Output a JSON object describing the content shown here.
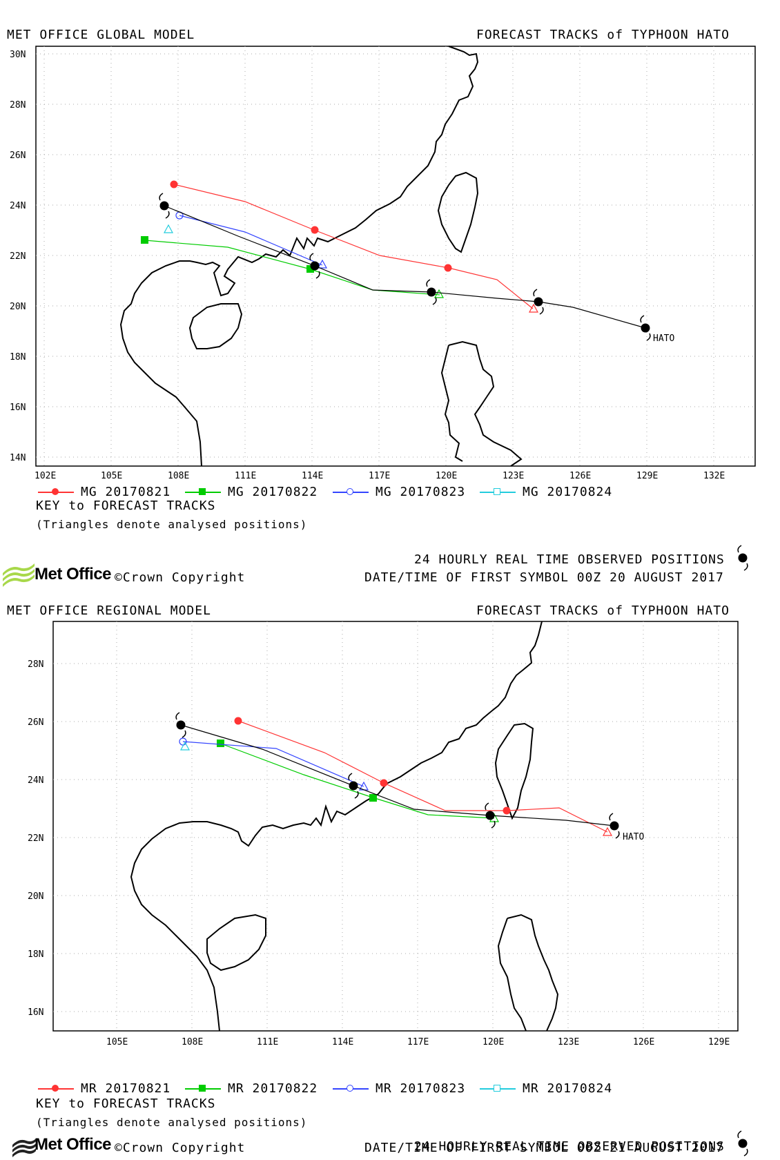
{
  "global": {
    "title_left": "MET OFFICE GLOBAL MODEL",
    "title_right": "FORECAST TRACKS of TYPHOON HATO",
    "lat_labels": [
      "30N",
      "28N",
      "26N",
      "24N",
      "22N",
      "20N",
      "18N",
      "16N",
      "14N"
    ],
    "lon_labels": [
      "102E",
      "105E",
      "108E",
      "111E",
      "114E",
      "117E",
      "120E",
      "123E",
      "126E",
      "129E",
      "132E"
    ],
    "storm_label": "HATO",
    "legend": [
      {
        "label": "MG 20170821",
        "color": "#ff3333",
        "marker": "filled-circle"
      },
      {
        "label": "MG 20170822",
        "color": "#00cc00",
        "marker": "filled-square"
      },
      {
        "label": "MG 20170823",
        "color": "#3344ff",
        "marker": "open-circle"
      },
      {
        "label": "MG 20170824",
        "color": "#22ccdd",
        "marker": "open-square"
      }
    ],
    "key_title": "KEY to FORECAST TRACKS",
    "key_note": "(Triangles denote analysed positions)",
    "obs_text": "24 HOURLY REAL TIME OBSERVED POSITIONS",
    "date_text": "DATE/TIME OF FIRST SYMBOL 00Z 20 AUGUST 2017",
    "logo_text": "Met Office",
    "copyright_text": "Crown Copyright"
  },
  "regional": {
    "title_left": "MET OFFICE REGIONAL MODEL",
    "title_right": "FORECAST TRACKS of TYPHOON HATO",
    "lat_labels": [
      "28N",
      "26N",
      "24N",
      "22N",
      "20N",
      "18N",
      "16N"
    ],
    "lon_labels": [
      "105E",
      "108E",
      "111E",
      "114E",
      "117E",
      "120E",
      "123E",
      "126E",
      "129E"
    ],
    "storm_label": "HATO",
    "legend": [
      {
        "label": "MR 20170821",
        "color": "#ff3333",
        "marker": "filled-circle"
      },
      {
        "label": "MR 20170822",
        "color": "#00cc00",
        "marker": "filled-square"
      },
      {
        "label": "MR 20170823",
        "color": "#3344ff",
        "marker": "open-circle"
      },
      {
        "label": "MR 20170824",
        "color": "#22ccdd",
        "marker": "open-square"
      }
    ],
    "key_title": "KEY to FORECAST TRACKS",
    "key_note": "(Triangles denote analysed positions)",
    "obs_text": "24 HOURLY REAL TIME OBSERVED POSITIONS",
    "date_text": "DATE/TIME OF FIRST SYMBOL 00Z 21 AUGUST 2017",
    "logo_text": "Met Office",
    "copyright_text": "Crown Copyright"
  },
  "colors": {
    "observed_track": "#000000",
    "coastline": "#000000",
    "grid": "#999999",
    "logo_green": "#a8d84a"
  }
}
